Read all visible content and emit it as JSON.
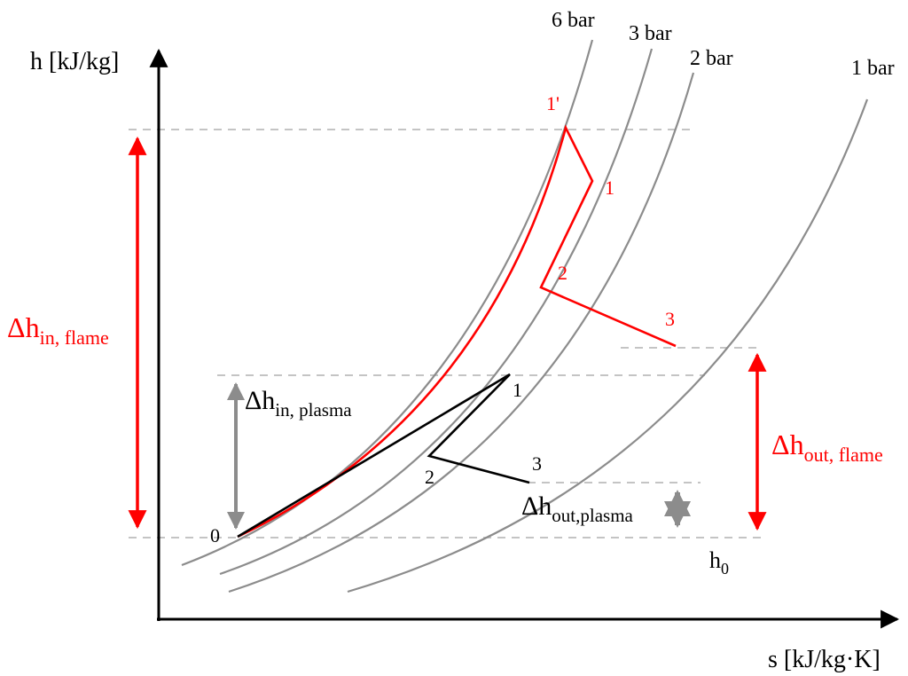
{
  "axes": {
    "y_label": "h [kJ/kg]",
    "x_label": "s [kJ/kg·K]"
  },
  "isobars": [
    {
      "label": "6 bar"
    },
    {
      "label": "3 bar"
    },
    {
      "label": "2 bar"
    },
    {
      "label": "1 bar"
    }
  ],
  "flame_cycle": {
    "color": "#ff0000",
    "points": [
      "1'",
      "1",
      "2",
      "3"
    ]
  },
  "plasma_cycle": {
    "color": "#000000",
    "points": [
      "0",
      "1",
      "2",
      "3"
    ]
  },
  "annotations": {
    "dh_in_flame": {
      "main": "Δh",
      "sub": "in, flame"
    },
    "dh_in_plasma": {
      "main": "Δh",
      "sub": "in, plasma"
    },
    "dh_out_flame": {
      "main": "Δh",
      "sub": "out, flame"
    },
    "dh_out_plasma": {
      "main": "Δh",
      "sub": "out,plasma"
    },
    "h0": {
      "main": "h",
      "sub": "0"
    }
  },
  "colors": {
    "flame": "#ff0000",
    "plasma": "#000000",
    "isobar": "#8c8c8c",
    "plasma_arrow": "#8c8c8c",
    "guide": "#c4c4c4"
  }
}
